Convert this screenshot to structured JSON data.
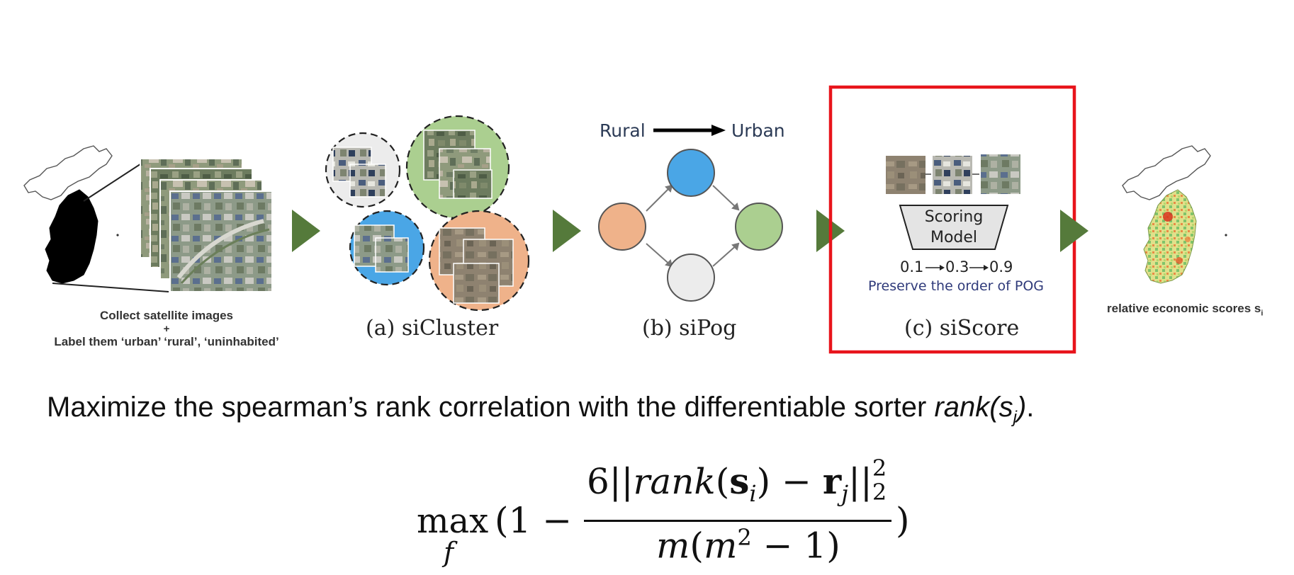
{
  "collect": {
    "line1": "Collect satellite images",
    "plus": "+",
    "line2": "Label them ‘urban’ ‘rural’, ‘uninhabited’"
  },
  "stages": {
    "a": "(a) siCluster",
    "b": "(b) siPog",
    "c": "(c) siScore"
  },
  "pog": {
    "rural": "Rural",
    "urban": "Urban"
  },
  "scoring": {
    "model_line1": "Scoring",
    "model_line2": "Model",
    "s1": "0.1",
    "s2": "0.3",
    "s3": "0.9",
    "preserve": "Preserve the order of POG"
  },
  "output": {
    "label": "relative economic scores s",
    "sub": "i"
  },
  "sentence": {
    "prefix": "Maximize the spearman’s rank correlation with the differentiable sorter ",
    "func": "rank(s",
    "sub": "j",
    "close": ")",
    "period": "."
  },
  "formula": {
    "max": "max",
    "under": "f",
    "lead": "(1 −",
    "num_prefix": "6||",
    "rank": "rank",
    "s": "s",
    "i": "i",
    "minus": ") − ",
    "r": "r",
    "j": "j",
    "norm": "||",
    "sup": "2",
    "subn": "2",
    "den_m": "m",
    "den_open": "(",
    "den_m2": "m",
    "den_exp": "2",
    "den_rest": " − 1)",
    "trail": ")"
  },
  "colors": {
    "arrow_green": "#557a3b",
    "highlight_red": "#e8141b",
    "node_blue": "#4aa6e6",
    "node_orange": "#efb28a",
    "node_green": "#abcf90",
    "node_gray": "#ececec"
  }
}
